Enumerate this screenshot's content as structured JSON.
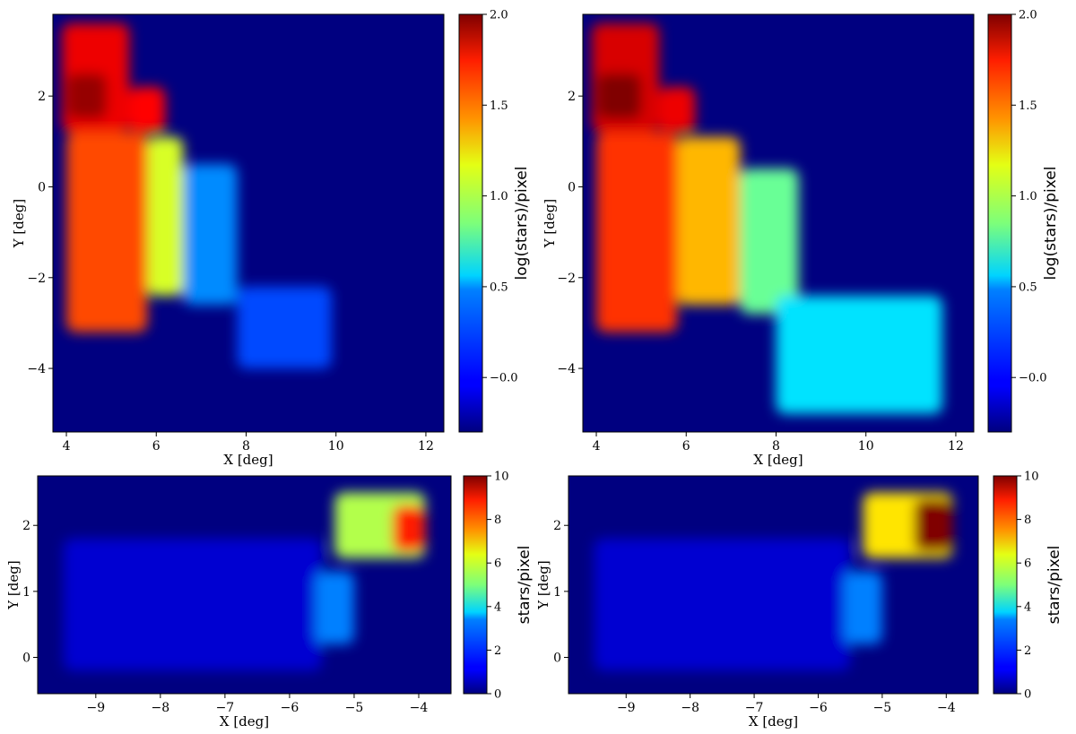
{
  "chart_data": [
    {
      "type": "heatmap",
      "panel": "top-left",
      "xlabel": "X [deg]",
      "ylabel": "Y [deg]",
      "xlim": [
        3.7,
        12.4
      ],
      "ylim": [
        -5.4,
        3.8
      ],
      "xticks": [
        4,
        6,
        8,
        10,
        12
      ],
      "yticks": [
        -4,
        -2,
        0,
        2
      ],
      "colorbar": {
        "label": "log(stars)/pixel",
        "range": [
          -0.3,
          2.0
        ],
        "ticks": [
          "−0.0",
          "0.5",
          "1.0",
          "1.5",
          "2.0"
        ],
        "tick_values": [
          0.0,
          0.5,
          1.0,
          1.5,
          2.0
        ],
        "colormap": "jet"
      },
      "background_value": -0.3,
      "regions": [
        {
          "name": "upper block",
          "x": [
            3.9,
            5.4
          ],
          "y": [
            1.2,
            3.6
          ],
          "value": 1.75
        },
        {
          "name": "upper shoulder",
          "x": [
            5.4,
            6.2
          ],
          "y": [
            1.2,
            2.2
          ],
          "value": 1.7
        },
        {
          "name": "peak",
          "x": [
            4.0,
            4.9
          ],
          "y": [
            1.5,
            2.5
          ],
          "value": 1.95
        },
        {
          "name": "left strip",
          "x": [
            4.0,
            5.8
          ],
          "y": [
            -3.2,
            1.2
          ],
          "value": 1.55
        },
        {
          "name": "middle band",
          "x": [
            5.8,
            6.6
          ],
          "y": [
            -2.4,
            1.1
          ],
          "value": 1.05
        },
        {
          "name": "right band",
          "x": [
            6.6,
            7.8
          ],
          "y": [
            -2.6,
            0.5
          ],
          "value": 0.3
        },
        {
          "name": "stream",
          "x": [
            7.8,
            9.9
          ],
          "y": [
            -4.0,
            -2.2
          ],
          "value": 0.15
        }
      ]
    },
    {
      "type": "heatmap",
      "panel": "top-right",
      "xlabel": "X [deg]",
      "ylabel": "Y [deg]",
      "xlim": [
        3.7,
        12.4
      ],
      "ylim": [
        -5.4,
        3.8
      ],
      "xticks": [
        4,
        6,
        8,
        10,
        12
      ],
      "yticks": [
        -4,
        -2,
        0,
        2
      ],
      "colorbar": {
        "label": "log(stars)/pixel",
        "range": [
          -0.3,
          2.0
        ],
        "ticks": [
          "−0.0",
          "0.5",
          "1.0",
          "1.5",
          "2.0"
        ],
        "tick_values": [
          0.0,
          0.5,
          1.0,
          1.5,
          2.0
        ],
        "colormap": "jet"
      },
      "background_value": -0.3,
      "regions": [
        {
          "name": "upper block",
          "x": [
            3.9,
            5.4
          ],
          "y": [
            1.2,
            3.6
          ],
          "value": 1.8
        },
        {
          "name": "upper shoulder",
          "x": [
            5.4,
            6.2
          ],
          "y": [
            1.2,
            2.2
          ],
          "value": 1.75
        },
        {
          "name": "peak",
          "x": [
            4.0,
            5.0
          ],
          "y": [
            1.5,
            2.5
          ],
          "value": 2.0
        },
        {
          "name": "left strip",
          "x": [
            4.0,
            5.8
          ],
          "y": [
            -3.2,
            1.2
          ],
          "value": 1.6
        },
        {
          "name": "middle band",
          "x": [
            5.8,
            7.2
          ],
          "y": [
            -2.6,
            1.1
          ],
          "value": 1.3
        },
        {
          "name": "right band",
          "x": [
            7.2,
            8.5
          ],
          "y": [
            -2.8,
            0.4
          ],
          "value": 0.8
        },
        {
          "name": "stream",
          "x": [
            8.0,
            11.7
          ],
          "y": [
            -5.0,
            -2.4
          ],
          "value": 0.5
        }
      ]
    },
    {
      "type": "heatmap",
      "panel": "bottom-left",
      "xlabel": "X [deg]",
      "ylabel": "Y [deg]",
      "xlim": [
        -9.9,
        -3.5
      ],
      "ylim": [
        -0.55,
        2.75
      ],
      "xticks": [
        -9,
        -8,
        -7,
        -6,
        -5,
        -4
      ],
      "yticks": [
        0,
        1,
        2
      ],
      "colorbar": {
        "label": "stars/pixel",
        "range": [
          0,
          10
        ],
        "ticks": [
          "0",
          "2",
          "4",
          "6",
          "8",
          "10"
        ],
        "tick_values": [
          0,
          2,
          4,
          6,
          8,
          10
        ],
        "colormap": "jet"
      },
      "background_value": 0,
      "regions": [
        {
          "name": "diffuse band",
          "x": [
            -9.5,
            -5.5
          ],
          "y": [
            -0.2,
            1.8
          ],
          "value": 0.8
        },
        {
          "name": "block",
          "x": [
            -5.3,
            -3.9
          ],
          "y": [
            1.5,
            2.5
          ],
          "value": 5.5
        },
        {
          "name": "peak",
          "x": [
            -4.4,
            -3.9
          ],
          "y": [
            1.6,
            2.3
          ],
          "value": 8.5
        },
        {
          "name": "lower tail",
          "x": [
            -5.6,
            -5.0
          ],
          "y": [
            0.2,
            1.3
          ],
          "value": 2.5
        }
      ]
    },
    {
      "type": "heatmap",
      "panel": "bottom-right",
      "xlabel": "X [deg]",
      "ylabel": "Y [deg]",
      "xlim": [
        -9.9,
        -3.5
      ],
      "ylim": [
        -0.55,
        2.75
      ],
      "xticks": [
        -9,
        -8,
        -7,
        -6,
        -5,
        -4
      ],
      "yticks": [
        0,
        1,
        2
      ],
      "colorbar": {
        "label": "stars/pixel",
        "range": [
          0,
          10
        ],
        "ticks": [
          "0",
          "2",
          "4",
          "6",
          "8",
          "10"
        ],
        "tick_values": [
          0,
          2,
          4,
          6,
          8,
          10
        ],
        "colormap": "jet"
      },
      "background_value": 0,
      "regions": [
        {
          "name": "diffuse band",
          "x": [
            -9.5,
            -5.5
          ],
          "y": [
            -0.2,
            1.8
          ],
          "value": 0.8
        },
        {
          "name": "block",
          "x": [
            -5.3,
            -3.9
          ],
          "y": [
            1.5,
            2.5
          ],
          "value": 6.5
        },
        {
          "name": "peak",
          "x": [
            -4.5,
            -3.9
          ],
          "y": [
            1.6,
            2.4
          ],
          "value": 10
        },
        {
          "name": "lower tail",
          "x": [
            -5.6,
            -5.0
          ],
          "y": [
            0.2,
            1.3
          ],
          "value": 2.5
        }
      ]
    }
  ]
}
